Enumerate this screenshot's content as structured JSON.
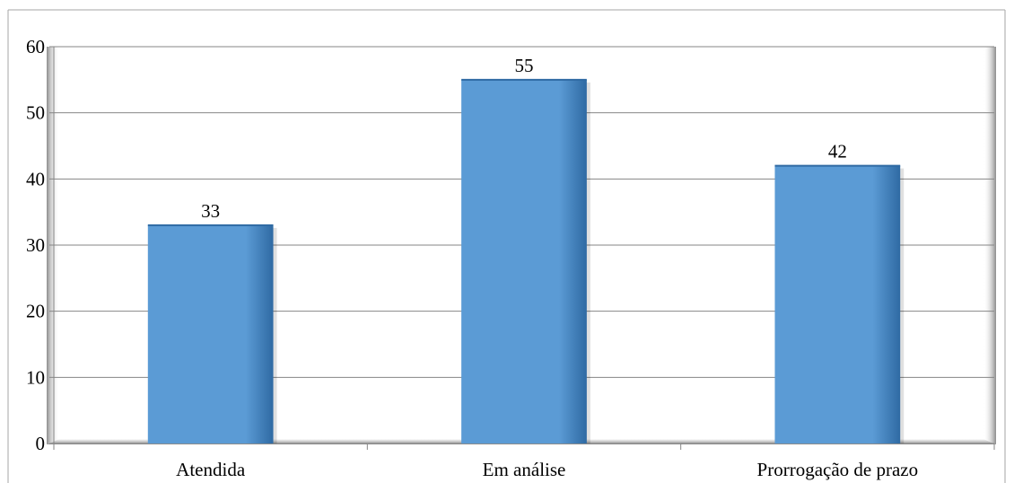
{
  "chart_data": {
    "type": "bar",
    "title": "",
    "xlabel": "",
    "ylabel": "",
    "categories": [
      "Atendida",
      "Em análise",
      "Prorrogação de prazo"
    ],
    "values": [
      33,
      55,
      42
    ],
    "data_labels": [
      "33",
      "55",
      "42"
    ],
    "ylim": [
      0,
      60
    ],
    "yticks": [
      0,
      10,
      20,
      30,
      40,
      50,
      60
    ],
    "ytick_labels": [
      "0",
      "10",
      "20",
      "30",
      "40",
      "50",
      "60"
    ],
    "grid": true,
    "legend": "none",
    "colors": {
      "bar": "#5b9bd5",
      "bar_dark": "#2f6aa3",
      "grid": "#868686",
      "frame": "#a6a6a6"
    }
  }
}
